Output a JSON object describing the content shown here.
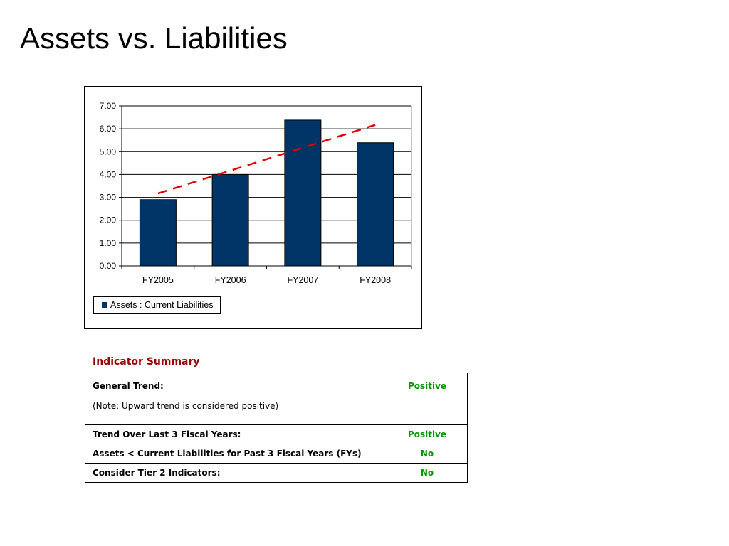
{
  "slide": {
    "title": "Assets vs. Liabilities"
  },
  "colors": {
    "bar": "#003366",
    "trend": "#e00000",
    "heading": "#990000",
    "positive": "#009900"
  },
  "chart_data": {
    "type": "bar",
    "title": "",
    "xlabel": "",
    "ylabel": "",
    "categories": [
      "FY2005",
      "FY2006",
      "FY2007",
      "FY2008"
    ],
    "series": [
      {
        "name": "Assets : Current Liabilities",
        "values": [
          2.9,
          4.0,
          6.38,
          5.39
        ]
      }
    ],
    "trendline": {
      "type": "linear",
      "style": "dashed",
      "start": 3.17,
      "end": 6.17
    },
    "ylim": [
      0,
      7
    ],
    "yticks": [
      "0.00",
      "1.00",
      "2.00",
      "3.00",
      "4.00",
      "5.00",
      "6.00",
      "7.00"
    ],
    "grid": true,
    "legend": "bottom-left"
  },
  "summary": {
    "heading": "Indicator Summary",
    "rows": [
      {
        "label": "General Trend:",
        "note": "(Note: Upward trend is considered positive)",
        "value": "Positive"
      },
      {
        "label": "Trend Over Last 3 Fiscal Years:",
        "value": "Positive"
      },
      {
        "label": "Assets < Current Liabilities for Past 3 Fiscal Years (FYs)",
        "value": "No"
      },
      {
        "label": "Consider Tier 2 Indicators:",
        "value": "No"
      }
    ]
  }
}
